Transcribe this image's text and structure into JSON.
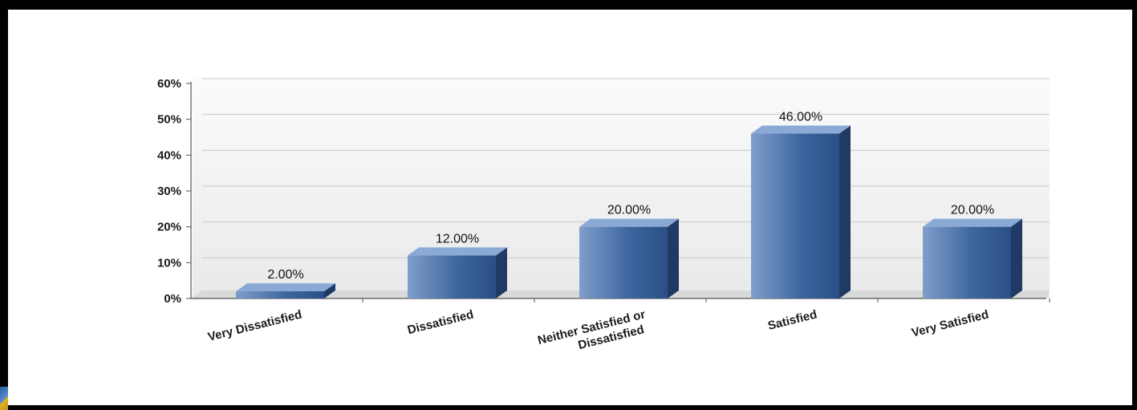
{
  "chart_data": {
    "type": "bar",
    "title": "",
    "xlabel": "",
    "ylabel": "",
    "categories": [
      [
        "Very Dissatisfied"
      ],
      [
        "Dissatisfied"
      ],
      [
        "Neither Satisfied or",
        "Dissatisfied"
      ],
      [
        "Satisfied"
      ],
      [
        "Very Satisfied"
      ]
    ],
    "values": [
      2,
      12,
      20,
      46,
      20
    ],
    "data_labels": [
      "2.00%",
      "12.00%",
      "20.00%",
      "46.00%",
      "20.00%"
    ],
    "ylim": [
      0,
      60
    ],
    "yticks": [
      0,
      10,
      20,
      30,
      40,
      50,
      60
    ],
    "ytick_labels": [
      "0%",
      "10%",
      "20%",
      "30%",
      "40%",
      "50%",
      "60%"
    ],
    "grid": true,
    "legend": "none",
    "style": "3d",
    "colors": {
      "bar_front_light": "#7f9fcb",
      "bar_front_dark": "#2a4f86",
      "bar_top": "#8aa9d4",
      "bar_side": "#1f3a63",
      "plot_background": "#f3f3f3",
      "grid_line": "#c8c8c8",
      "axis_line": "#555555"
    }
  }
}
